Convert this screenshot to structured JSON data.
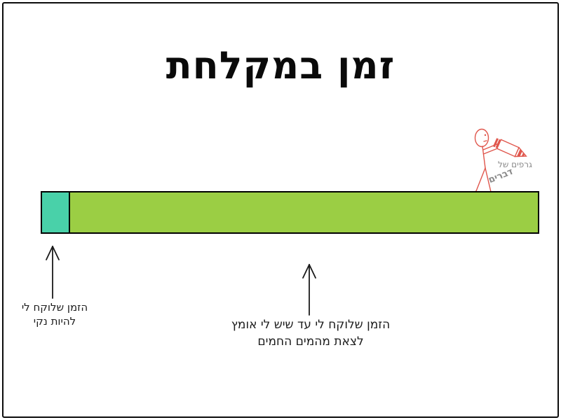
{
  "page": {
    "background": "#ffffff",
    "border_color": "#0c0c0c"
  },
  "title": "זמן במקלחת",
  "chart_data": {
    "type": "bar",
    "orientation": "horizontal",
    "title": "זמן במקלחת",
    "bar_outline_color": "#000000",
    "segments": [
      {
        "name": "time-to-get-clean",
        "label": "הזמן שלוקח לי להיות נקי",
        "percent": 5.6,
        "color": "#49d1a9"
      },
      {
        "name": "time-until-courage-to-leave-hot-water",
        "label": "הזמן שלוקח לי עד שיש לי אומץ לצאת מהמים החמים",
        "percent": 94.4,
        "color": "#9bce44"
      }
    ]
  },
  "annotations": {
    "arrow_color": "#1a1a1a",
    "left": {
      "line1": "הזמן שלוקח לי",
      "line2": "להיות נקי"
    },
    "middle": {
      "line1": "הזמן שלוקח לי עד שיש לי אומץ",
      "line2": "לצאת מהמים החמים"
    }
  },
  "watermark": {
    "text_line1": "גרפים של",
    "text_line2": "דברים",
    "figure_color": "#e0574d",
    "text_color": "#8a8a8a"
  }
}
